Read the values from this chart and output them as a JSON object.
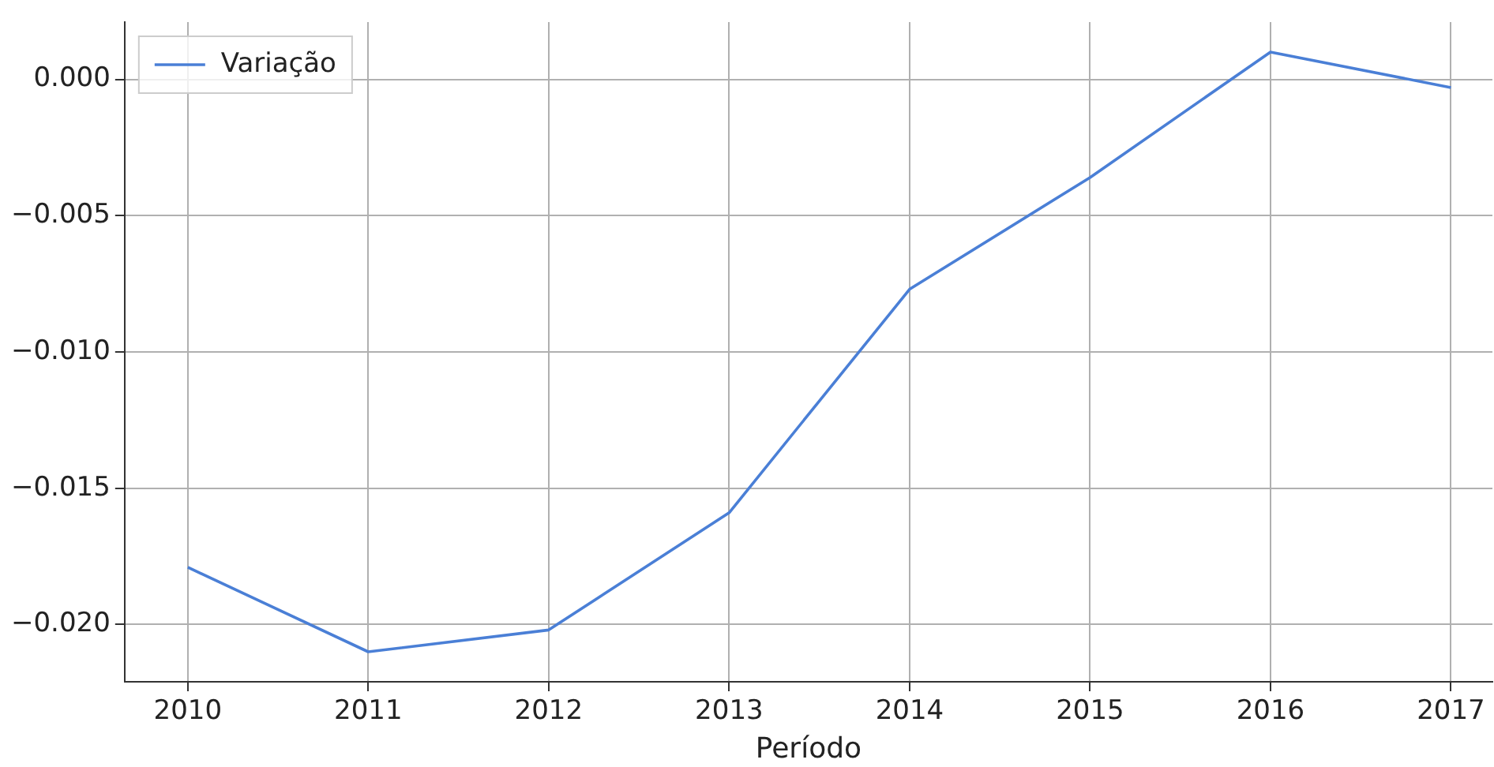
{
  "chart_data": {
    "type": "line",
    "xlabel": "Período",
    "x": [
      2010,
      2011,
      2012,
      2013,
      2014,
      2015,
      2016,
      2017
    ],
    "series": [
      {
        "name": "Variação",
        "color": "#4a7fd6",
        "values": [
          -0.0179,
          -0.021,
          -0.0202,
          -0.0159,
          -0.0077,
          -0.0036,
          0.001,
          -0.0003
        ]
      }
    ],
    "xlim": [
      2009.65,
      2017.23
    ],
    "xticks": [
      2010,
      2011,
      2012,
      2013,
      2014,
      2015,
      2016,
      2017
    ],
    "ylim": [
      -0.0221,
      0.0021
    ],
    "yticks": [
      {
        "value": -0.02,
        "label": "−0.020"
      },
      {
        "value": -0.015,
        "label": "−0.015"
      },
      {
        "value": -0.01,
        "label": "−0.010"
      },
      {
        "value": -0.005,
        "label": "−0.005"
      },
      {
        "value": 0,
        "label": "0.000"
      }
    ],
    "grid": true,
    "legend": "top left",
    "marker": "none",
    "line_style": "solid"
  }
}
